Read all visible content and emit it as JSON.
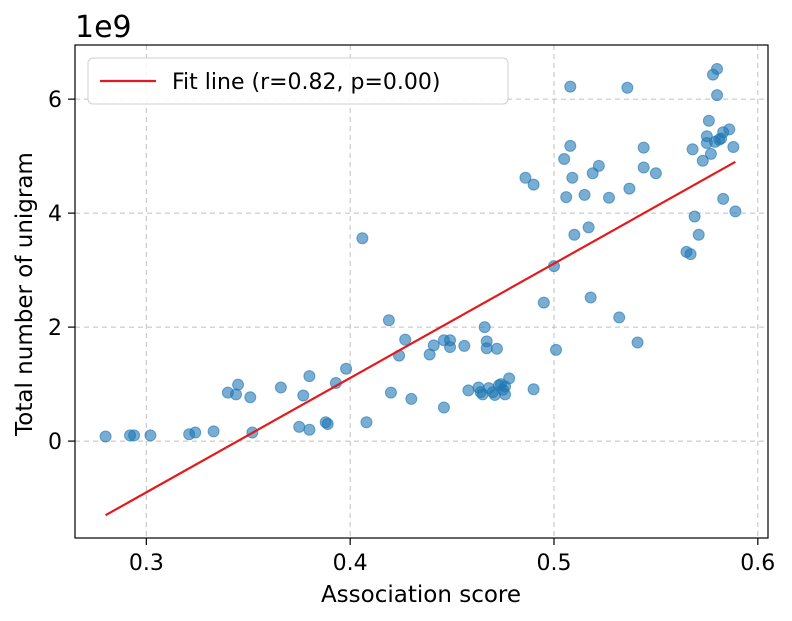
{
  "chart_data": {
    "type": "scatter",
    "title": "",
    "xlabel": "Association score",
    "ylabel": "Total number of unigram",
    "y_offset_label": "1e9",
    "xlim": [
      0.265,
      0.605
    ],
    "ylim": [
      -1.7,
      6.95
    ],
    "grid": true,
    "legend_location": "top-left",
    "x_ticks": [
      0.3,
      0.4,
      0.5,
      0.6
    ],
    "x_tick_labels": [
      "0.3",
      "0.4",
      "0.5",
      "0.6"
    ],
    "y_ticks": [
      0,
      2,
      4,
      6
    ],
    "y_tick_labels": [
      "0",
      "2",
      "4",
      "6"
    ],
    "fit_line": {
      "label": "Fit line (r=0.82, p=0.00)",
      "color": "#e41a1c",
      "x": [
        0.28,
        0.589
      ],
      "y": [
        -1.3,
        4.9
      ]
    },
    "series": [
      {
        "name": "points",
        "color": "#1f77b4",
        "points": [
          [
            0.28,
            0.08
          ],
          [
            0.292,
            0.1
          ],
          [
            0.294,
            0.1
          ],
          [
            0.302,
            0.1
          ],
          [
            0.321,
            0.12
          ],
          [
            0.324,
            0.15
          ],
          [
            0.333,
            0.17
          ],
          [
            0.34,
            0.85
          ],
          [
            0.344,
            0.82
          ],
          [
            0.345,
            0.99
          ],
          [
            0.351,
            0.77
          ],
          [
            0.352,
            0.15
          ],
          [
            0.366,
            0.94
          ],
          [
            0.375,
            0.25
          ],
          [
            0.377,
            0.8
          ],
          [
            0.38,
            0.2
          ],
          [
            0.38,
            1.14
          ],
          [
            0.388,
            0.33
          ],
          [
            0.389,
            0.3
          ],
          [
            0.393,
            1.02
          ],
          [
            0.398,
            1.27
          ],
          [
            0.406,
            3.56
          ],
          [
            0.408,
            0.33
          ],
          [
            0.419,
            2.12
          ],
          [
            0.42,
            0.85
          ],
          [
            0.424,
            1.5
          ],
          [
            0.427,
            1.78
          ],
          [
            0.43,
            0.74
          ],
          [
            0.439,
            1.52
          ],
          [
            0.441,
            1.68
          ],
          [
            0.446,
            1.77
          ],
          [
            0.446,
            0.59
          ],
          [
            0.449,
            1.77
          ],
          [
            0.449,
            1.65
          ],
          [
            0.456,
            1.67
          ],
          [
            0.458,
            0.89
          ],
          [
            0.463,
            0.94
          ],
          [
            0.464,
            0.86
          ],
          [
            0.465,
            0.82
          ],
          [
            0.466,
            2.0
          ],
          [
            0.467,
            1.75
          ],
          [
            0.467,
            1.63
          ],
          [
            0.468,
            0.93
          ],
          [
            0.47,
            0.86
          ],
          [
            0.471,
            0.81
          ],
          [
            0.472,
            1.62
          ],
          [
            0.473,
            0.98
          ],
          [
            0.474,
            1.0
          ],
          [
            0.475,
            0.9
          ],
          [
            0.476,
            0.96
          ],
          [
            0.476,
            0.82
          ],
          [
            0.478,
            1.1
          ],
          [
            0.486,
            4.62
          ],
          [
            0.49,
            4.5
          ],
          [
            0.49,
            0.91
          ],
          [
            0.495,
            2.43
          ],
          [
            0.5,
            3.07
          ],
          [
            0.501,
            1.6
          ],
          [
            0.505,
            4.95
          ],
          [
            0.506,
            4.28
          ],
          [
            0.508,
            5.18
          ],
          [
            0.508,
            6.22
          ],
          [
            0.509,
            4.62
          ],
          [
            0.51,
            3.62
          ],
          [
            0.515,
            4.32
          ],
          [
            0.517,
            3.75
          ],
          [
            0.518,
            2.52
          ],
          [
            0.519,
            4.7
          ],
          [
            0.522,
            4.83
          ],
          [
            0.527,
            4.27
          ],
          [
            0.532,
            2.17
          ],
          [
            0.536,
            6.2
          ],
          [
            0.537,
            4.43
          ],
          [
            0.541,
            1.73
          ],
          [
            0.544,
            4.8
          ],
          [
            0.544,
            5.15
          ],
          [
            0.55,
            4.7
          ],
          [
            0.565,
            3.32
          ],
          [
            0.567,
            3.28
          ],
          [
            0.568,
            5.12
          ],
          [
            0.569,
            3.94
          ],
          [
            0.571,
            3.62
          ],
          [
            0.573,
            4.92
          ],
          [
            0.575,
            5.35
          ],
          [
            0.575,
            5.23
          ],
          [
            0.576,
            5.62
          ],
          [
            0.577,
            5.04
          ],
          [
            0.578,
            6.43
          ],
          [
            0.579,
            5.25
          ],
          [
            0.58,
            6.53
          ],
          [
            0.58,
            6.07
          ],
          [
            0.581,
            5.29
          ],
          [
            0.582,
            5.31
          ],
          [
            0.583,
            5.42
          ],
          [
            0.583,
            4.25
          ],
          [
            0.586,
            5.47
          ],
          [
            0.588,
            5.16
          ],
          [
            0.589,
            4.03
          ]
        ]
      }
    ]
  }
}
